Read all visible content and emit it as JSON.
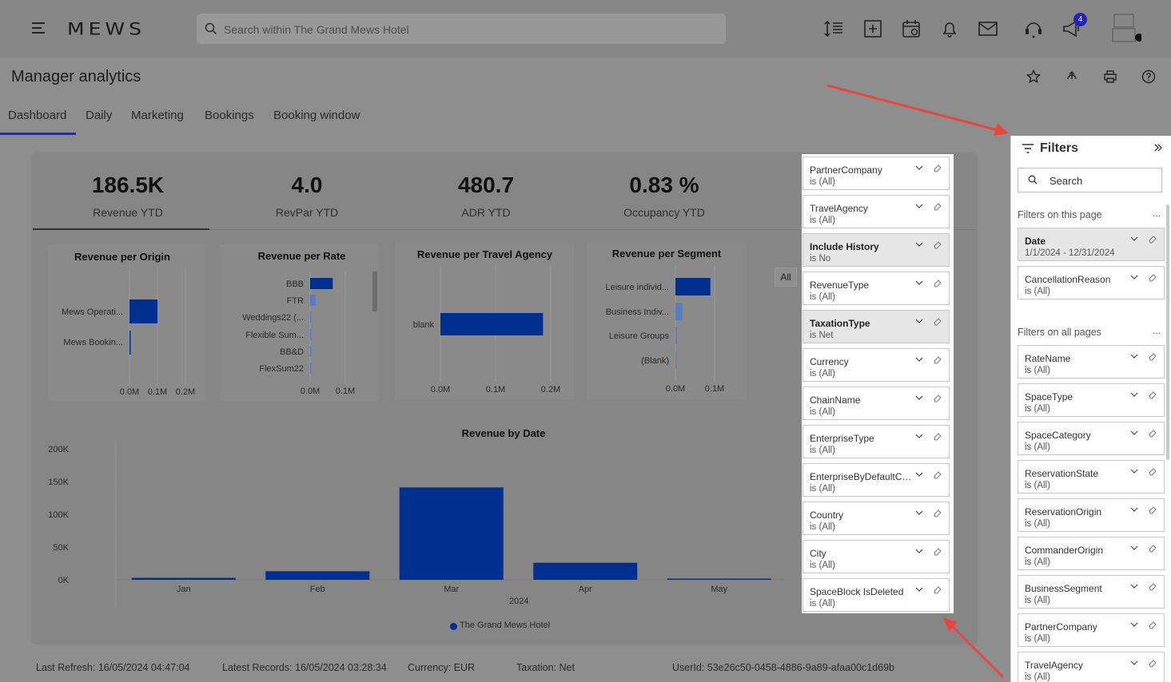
{
  "app": {
    "logo": "MEWS",
    "search_placeholder": "Search within The Grand Mews Hotel",
    "notification_count": "4"
  },
  "page": {
    "title": "Manager analytics"
  },
  "tabs": [
    {
      "label": "Dashboard",
      "active": true
    },
    {
      "label": "Daily"
    },
    {
      "label": "Marketing"
    },
    {
      "label": "Bookings"
    },
    {
      "label": "Booking window"
    }
  ],
  "kpis": [
    {
      "value": "186.5K",
      "label": "Revenue YTD"
    },
    {
      "value": "4.0",
      "label": "RevPar YTD"
    },
    {
      "value": "480.7",
      "label": "ADR YTD"
    },
    {
      "value": "0.83 %",
      "label": "Occupancy YTD"
    }
  ],
  "charts": {
    "origin": {
      "title": "Revenue per Origin",
      "categories": [
        "Mews Operati...",
        "Mews Bookin..."
      ],
      "ticks": [
        "0.0M",
        "0.1M",
        "0.2M"
      ]
    },
    "rate": {
      "title": "Revenue per Rate",
      "categories": [
        "BBB",
        "FTR",
        "Weddings22 (...",
        "Flexible Sum...",
        "BB&D",
        "FlexSum22"
      ],
      "ticks": [
        "0.0M",
        "0.1M"
      ]
    },
    "agency": {
      "title": "Revenue per Travel Agency",
      "categories": [
        "blank"
      ],
      "ticks": [
        "0.0M",
        "0.1M",
        "0.2M"
      ]
    },
    "segment": {
      "title": "Revenue per Segment",
      "categories": [
        "Leisure individ...",
        "Business Indiv...",
        "Leisure Groups",
        "(Blank)"
      ],
      "ticks": [
        "0.0M",
        "0.1M"
      ]
    },
    "date": {
      "title": "Revenue by Date",
      "y_ticks": [
        "200K",
        "150K",
        "100K",
        "50K",
        "0K"
      ],
      "x_ticks": [
        "Jan",
        "Feb",
        "Mar",
        "Apr",
        "May"
      ],
      "x_title": "2024",
      "legend": "The Grand Mews Hotel"
    }
  },
  "chart_data": [
    {
      "type": "bar",
      "title": "Revenue per Origin",
      "orientation": "horizontal",
      "categories": [
        "Mews Operati...",
        "Mews Bookin..."
      ],
      "values": [
        0.1,
        0.001
      ],
      "xlim": [
        0,
        0.2
      ],
      "unit": "M"
    },
    {
      "type": "bar",
      "title": "Revenue per Rate",
      "orientation": "horizontal",
      "categories": [
        "BBB",
        "FTR",
        "Weddings22 (...",
        "Flexible Sum...",
        "BB&D",
        "FlexSum22"
      ],
      "values": [
        0.09,
        0.022,
        0.004,
        0.004,
        0.004,
        0.003
      ],
      "xlim": [
        0,
        0.14
      ],
      "unit": "M"
    },
    {
      "type": "bar",
      "title": "Revenue per Travel Agency",
      "orientation": "horizontal",
      "categories": [
        "blank"
      ],
      "values": [
        0.186
      ],
      "xlim": [
        0,
        0.2
      ],
      "unit": "M"
    },
    {
      "type": "bar",
      "title": "Revenue per Segment",
      "orientation": "horizontal",
      "categories": [
        "Leisure individ...",
        "Business Indiv...",
        "Leisure Groups",
        "(Blank)"
      ],
      "values": [
        0.125,
        0.025,
        0.005,
        0.001
      ],
      "xlim": [
        0,
        0.14
      ],
      "unit": "M"
    },
    {
      "type": "bar",
      "title": "Revenue by Date",
      "categories": [
        "Jan",
        "Feb",
        "Mar",
        "Apr",
        "May"
      ],
      "series": [
        {
          "name": "The Grand Mews Hotel",
          "values": [
            3000,
            13000,
            141000,
            26000,
            1000
          ]
        }
      ],
      "ylim": [
        0,
        200000
      ],
      "xlabel": "2024"
    }
  ],
  "all_button": "All",
  "filter_cards": [
    {
      "name": "PartnerCompany",
      "value": "is (All)"
    },
    {
      "name": "TravelAgency",
      "value": "is (All)"
    },
    {
      "name": "Include History",
      "value": "is No",
      "highlighted": true
    },
    {
      "name": "RevenueType",
      "value": "is (All)"
    },
    {
      "name": "TaxationType",
      "value": "is Net",
      "highlighted": true
    },
    {
      "name": "Currency",
      "value": "is (All)"
    },
    {
      "name": "ChainName",
      "value": "is (All)"
    },
    {
      "name": "EnterpriseType",
      "value": "is (All)"
    },
    {
      "name": "EnterpriseByDefaultCur...",
      "value": "is (All)"
    },
    {
      "name": "Country",
      "value": "is (All)"
    },
    {
      "name": "City",
      "value": "is (All)"
    },
    {
      "name": "SpaceBlock IsDeleted",
      "value": "is (All)"
    }
  ],
  "filter_pane": {
    "title": "Filters",
    "search_placeholder": "Search",
    "this_page_label": "Filters on this page",
    "all_pages_label": "Filters on all pages",
    "more": "...",
    "this_page": [
      {
        "name": "Date",
        "value": "1/1/2024 - 12/31/2024",
        "highlighted": true
      },
      {
        "name": "CancellationReason",
        "value": "is (All)"
      }
    ],
    "all_pages": [
      {
        "name": "RateName",
        "value": "is (All)"
      },
      {
        "name": "SpaceType",
        "value": "is (All)"
      },
      {
        "name": "SpaceCategory",
        "value": "is (All)"
      },
      {
        "name": "ReservationState",
        "value": "is (All)"
      },
      {
        "name": "ReservationOrigin",
        "value": "is (All)"
      },
      {
        "name": "CommanderOrigin",
        "value": "is (All)"
      },
      {
        "name": "BusinessSegment",
        "value": "is (All)"
      },
      {
        "name": "PartnerCompany",
        "value": "is (All)"
      },
      {
        "name": "TravelAgency",
        "value": "is (All)"
      }
    ]
  },
  "footer": {
    "last_refresh": "Last Refresh: 16/05/2024 04:47:04",
    "latest_records": "Latest Records: 16/05/2024 03:28:34",
    "currency": "Currency: EUR",
    "taxation": "Taxation: Net",
    "user_id": "UserId: 53e26c50-0458-4886-9a89-afaa00c1d69b"
  },
  "colors": {
    "bar": "#00308f",
    "bar_light": "#5a7bc7",
    "overlay": "#878787",
    "accent": "#2a2f8c",
    "arrow": "#e8473d"
  }
}
